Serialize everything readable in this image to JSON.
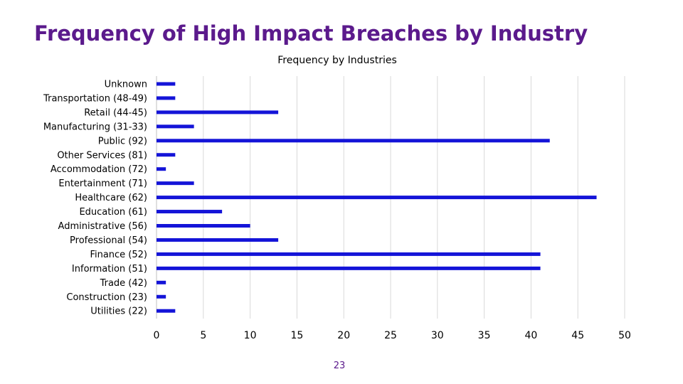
{
  "slide": {
    "title": "Frequency of High Impact Breaches by Industry",
    "page_number": "23"
  },
  "colors": {
    "title": "#5b1a8c",
    "bar": "#1414d8",
    "gridline": "#d9d9d9",
    "page_number": "#5b1a8c"
  },
  "chart_data": {
    "type": "bar",
    "orientation": "horizontal",
    "title": "Frequency by Industries",
    "xlabel": "",
    "ylabel": "",
    "xlim": [
      0,
      50
    ],
    "x_ticks": [
      0,
      5,
      10,
      15,
      20,
      25,
      30,
      35,
      40,
      45,
      50
    ],
    "grid": true,
    "legend": "none",
    "categories": [
      "Unknown",
      "Transportation (48-49)",
      "Retail (44-45)",
      "Manufacturing (31-33)",
      "Public (92)",
      "Other Services (81)",
      "Accommodation (72)",
      "Entertainment (71)",
      "Healthcare (62)",
      "Education (61)",
      "Administrative (56)",
      "Professional (54)",
      "Finance (52)",
      "Information (51)",
      "Trade (42)",
      "Construction (23)",
      "Utilities (22)"
    ],
    "values": [
      2,
      2,
      13,
      4,
      42,
      2,
      1,
      4,
      47,
      7,
      10,
      13,
      41,
      41,
      1,
      1,
      2
    ]
  }
}
